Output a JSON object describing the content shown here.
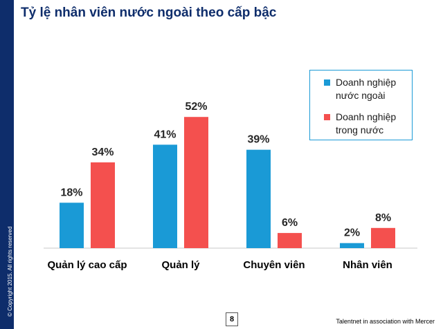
{
  "slide": {
    "title": "Tỷ lệ nhân viên nước ngoài theo cấp bậc",
    "copyright": "© Copyright 2015. All rights reserved",
    "page_number": "8",
    "footer": "Talentnet in association with Mercer"
  },
  "colors": {
    "brand_navy": "#0e2d6b",
    "series_foreign": "#1a9ad6",
    "series_domestic": "#f4504e"
  },
  "chart_data": {
    "type": "bar",
    "title": "Tỷ lệ nhân viên nước ngoài theo cấp bậc",
    "xlabel": "",
    "ylabel": "",
    "ylim": [
      0,
      60
    ],
    "grid": false,
    "legend_position": "top-right",
    "categories": [
      "Quản lý cao cấp",
      "Quản lý",
      "Chuyên viên",
      "Nhân viên"
    ],
    "series": [
      {
        "name": "Doanh nghiệp nước ngoài",
        "values": [
          18,
          41,
          39,
          2
        ],
        "labels": [
          "18%",
          "41%",
          "39%",
          "2%"
        ],
        "color": "#1a9ad6"
      },
      {
        "name": "Doanh nghiệp trong nước",
        "values": [
          34,
          52,
          6,
          8
        ],
        "labels": [
          "34%",
          "52%",
          "6%",
          "8%"
        ],
        "color": "#f4504e"
      }
    ]
  }
}
